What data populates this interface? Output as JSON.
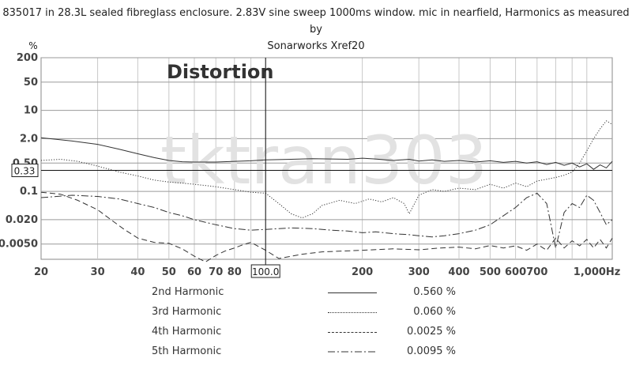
{
  "title": {
    "line1": "835017 in 28.3L sealed fibreglass enclosure. 2.83V sine sweep 1000ms window. mic in nearfield, Harmonics as measured by",
    "line2": "Sonarworks Xref20"
  },
  "watermark": "tktran303",
  "annotation": "Distortion",
  "chart_data": {
    "type": "line",
    "title": "835017 in 28.3L sealed fibreglass enclosure. 2.83V sine sweep 1000ms window. mic in nearfield, Harmonics as measured by Sonarworks Xref20",
    "xlabel": "Hz",
    "ylabel": "%",
    "x_scale": "log",
    "y_scale": "log",
    "xlim": [
      20,
      1200
    ],
    "ylim": [
      0.0021,
      200
    ],
    "x_tick_labels": [
      "20",
      "30",
      "40",
      "50",
      "60",
      "70",
      "80",
      "100.0",
      "200",
      "300",
      "400",
      "500",
      "600",
      "700",
      "1,000Hz"
    ],
    "x_tick_values": [
      20,
      30,
      40,
      50,
      60,
      70,
      80,
      100,
      200,
      300,
      400,
      500,
      600,
      700,
      1000
    ],
    "y_tick_labels": [
      "200",
      "50",
      "10",
      "2.0",
      "0.50",
      "0.1",
      "0.020",
      "0.0050"
    ],
    "y_tick_values": [
      200,
      50,
      10,
      2,
      0.5,
      0.1,
      0.02,
      0.005
    ],
    "cursor": {
      "x": 100,
      "y": 0.33,
      "x_label": "100.0",
      "y_label": "0.33"
    },
    "grid": true,
    "series": [
      {
        "name": "2nd Harmonic",
        "style": "solid",
        "color": "#333333",
        "x": [
          20,
          25,
          30,
          35,
          40,
          45,
          50,
          55,
          60,
          70,
          80,
          90,
          100,
          120,
          140,
          160,
          180,
          200,
          220,
          250,
          280,
          300,
          330,
          360,
          400,
          450,
          500,
          550,
          600,
          650,
          700,
          750,
          800,
          850,
          900,
          950,
          1000,
          1050,
          1100,
          1150,
          1200
        ],
        "values": [
          2.1,
          1.75,
          1.45,
          1.1,
          0.85,
          0.68,
          0.58,
          0.54,
          0.53,
          0.53,
          0.55,
          0.57,
          0.6,
          0.62,
          0.64,
          0.63,
          0.62,
          0.66,
          0.63,
          0.58,
          0.62,
          0.56,
          0.6,
          0.55,
          0.58,
          0.53,
          0.57,
          0.52,
          0.55,
          0.5,
          0.54,
          0.46,
          0.52,
          0.44,
          0.5,
          0.4,
          0.48,
          0.35,
          0.45,
          0.38,
          0.55
        ]
      },
      {
        "name": "3rd Harmonic",
        "style": "dotted",
        "color": "#333333",
        "x": [
          20,
          23,
          26,
          30,
          35,
          40,
          45,
          50,
          55,
          60,
          70,
          80,
          90,
          100,
          110,
          120,
          130,
          140,
          150,
          170,
          190,
          210,
          230,
          250,
          270,
          280,
          300,
          330,
          360,
          400,
          450,
          500,
          550,
          600,
          650,
          700,
          750,
          800,
          850,
          900,
          950,
          1000,
          1050,
          1100,
          1150,
          1200
        ],
        "values": [
          0.58,
          0.62,
          0.55,
          0.42,
          0.3,
          0.24,
          0.19,
          0.17,
          0.16,
          0.15,
          0.13,
          0.11,
          0.095,
          0.09,
          0.05,
          0.028,
          0.022,
          0.028,
          0.045,
          0.06,
          0.05,
          0.065,
          0.055,
          0.07,
          0.05,
          0.028,
          0.08,
          0.11,
          0.1,
          0.12,
          0.11,
          0.15,
          0.12,
          0.16,
          0.13,
          0.18,
          0.2,
          0.22,
          0.25,
          0.3,
          0.5,
          1.0,
          2.0,
          3.5,
          5.5,
          4.5
        ]
      },
      {
        "name": "4th Harmonic",
        "style": "dashed",
        "color": "#333333",
        "x": [
          20,
          23,
          26,
          30,
          33,
          36,
          40,
          45,
          50,
          55,
          60,
          65,
          70,
          75,
          80,
          85,
          90,
          100,
          110,
          130,
          150,
          200,
          250,
          300,
          350,
          400,
          450,
          500,
          550,
          600,
          650,
          700,
          750,
          800,
          850,
          900,
          950,
          1000,
          1050,
          1100,
          1150,
          1200
        ],
        "values": [
          0.095,
          0.085,
          0.06,
          0.035,
          0.02,
          0.012,
          0.007,
          0.0055,
          0.0052,
          0.0038,
          0.0025,
          0.0018,
          0.0026,
          0.0034,
          0.004,
          0.0048,
          0.0055,
          0.0035,
          0.0022,
          0.0028,
          0.0032,
          0.0035,
          0.0038,
          0.0036,
          0.004,
          0.0042,
          0.0038,
          0.0046,
          0.004,
          0.0045,
          0.0035,
          0.005,
          0.0035,
          0.007,
          0.004,
          0.006,
          0.0045,
          0.0065,
          0.004,
          0.0065,
          0.004,
          0.007
        ]
      },
      {
        "name": "5th Harmonic",
        "style": "dashdot",
        "color": "#333333",
        "x": [
          20,
          25,
          30,
          35,
          40,
          45,
          50,
          55,
          60,
          70,
          80,
          90,
          100,
          120,
          140,
          160,
          180,
          200,
          220,
          250,
          280,
          300,
          330,
          360,
          400,
          450,
          500,
          550,
          600,
          650,
          700,
          750,
          800,
          850,
          900,
          950,
          1000,
          1050,
          1100,
          1150,
          1200
        ],
        "values": [
          0.07,
          0.08,
          0.075,
          0.065,
          0.05,
          0.04,
          0.03,
          0.025,
          0.02,
          0.015,
          0.012,
          0.011,
          0.0115,
          0.0125,
          0.012,
          0.011,
          0.0105,
          0.0095,
          0.01,
          0.009,
          0.0085,
          0.008,
          0.0075,
          0.008,
          0.009,
          0.011,
          0.015,
          0.025,
          0.04,
          0.07,
          0.09,
          0.05,
          0.004,
          0.03,
          0.05,
          0.04,
          0.08,
          0.06,
          0.03,
          0.015,
          0.02
        ]
      }
    ]
  },
  "legend": [
    {
      "name": "2nd Harmonic",
      "value": "0.560 %",
      "style": "solid"
    },
    {
      "name": "3rd Harmonic",
      "value": "0.060 %",
      "style": "dotted"
    },
    {
      "name": "4th Harmonic",
      "value": "0.0025 %",
      "style": "dashed"
    },
    {
      "name": "5th Harmonic",
      "value": "0.0095 %",
      "style": "dashdot"
    }
  ]
}
